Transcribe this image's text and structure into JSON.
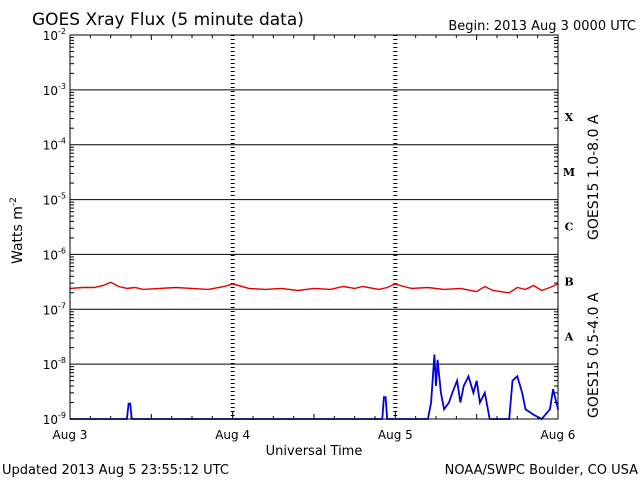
{
  "chart_data": {
    "type": "line",
    "title": "GOES Xray Flux (5 minute data)",
    "begin_label": "Begin:  2013 Aug 3 0000 UTC",
    "ylabel_base": "Watts m",
    "ylabel_exp": "-2",
    "xlabel": "Universal Time",
    "y_scale": "log",
    "ylim": [
      1e-09,
      0.01
    ],
    "xlim_days": [
      0,
      3
    ],
    "grid": "horizontal lines at each decade; dotted vertical lines at day boundaries",
    "x_ticks": [
      {
        "label": "Aug 3",
        "day": 0
      },
      {
        "label": "Aug 4",
        "day": 1
      },
      {
        "label": "Aug 5",
        "day": 2
      },
      {
        "label": "Aug 6",
        "day": 3
      }
    ],
    "y_ticks": [
      {
        "base": "10",
        "exp": "-2",
        "value": 0.01
      },
      {
        "base": "10",
        "exp": "-3",
        "value": 0.001
      },
      {
        "base": "10",
        "exp": "-4",
        "value": 0.0001
      },
      {
        "base": "10",
        "exp": "-5",
        "value": 1e-05
      },
      {
        "base": "10",
        "exp": "-6",
        "value": 1e-06
      },
      {
        "base": "10",
        "exp": "-7",
        "value": 1e-07
      },
      {
        "base": "10",
        "exp": "-8",
        "value": 1e-08
      },
      {
        "base": "10",
        "exp": "-9",
        "value": 1e-09
      }
    ],
    "flare_classes": [
      {
        "label": "X",
        "value": 0.00032
      },
      {
        "label": "M",
        "value": 3.2e-05
      },
      {
        "label": "C",
        "value": 3.2e-06
      },
      {
        "label": "B",
        "value": 3.2e-07
      },
      {
        "label": "A",
        "value": 3.2e-08
      }
    ],
    "series": [
      {
        "name": "GOES15 1.0-8.0 A",
        "color": "#e00000",
        "x_days": [
          0,
          0.08,
          0.15,
          0.2,
          0.25,
          0.3,
          0.35,
          0.4,
          0.45,
          0.55,
          0.65,
          0.75,
          0.85,
          0.95,
          1.0,
          1.1,
          1.2,
          1.3,
          1.4,
          1.5,
          1.6,
          1.68,
          1.75,
          1.8,
          1.9,
          1.95,
          2.0,
          2.05,
          2.1,
          2.2,
          2.3,
          2.4,
          2.5,
          2.55,
          2.6,
          2.7,
          2.75,
          2.8,
          2.85,
          2.9,
          2.95,
          3.0
        ],
        "values": [
          2.4e-07,
          2.5e-07,
          2.5e-07,
          2.7e-07,
          3.1e-07,
          2.6e-07,
          2.4e-07,
          2.5e-07,
          2.3e-07,
          2.4e-07,
          2.5e-07,
          2.4e-07,
          2.3e-07,
          2.6e-07,
          2.9e-07,
          2.4e-07,
          2.3e-07,
          2.4e-07,
          2.2e-07,
          2.4e-07,
          2.3e-07,
          2.6e-07,
          2.4e-07,
          2.6e-07,
          2.3e-07,
          2.5e-07,
          2.9e-07,
          2.6e-07,
          2.4e-07,
          2.5e-07,
          2.3e-07,
          2.4e-07,
          2.1e-07,
          2.6e-07,
          2.2e-07,
          2e-07,
          2.5e-07,
          2.3e-07,
          2.7e-07,
          2.2e-07,
          2.5e-07,
          2.9e-07
        ]
      },
      {
        "name": "GOES15 0.5-4.0 A",
        "color": "#0000e0",
        "x_days": [
          0,
          0.35,
          0.36,
          0.37,
          0.38,
          1.0,
          1.5,
          1.92,
          1.93,
          1.94,
          1.95,
          2.0,
          2.2,
          2.22,
          2.24,
          2.25,
          2.26,
          2.28,
          2.3,
          2.33,
          2.35,
          2.38,
          2.4,
          2.42,
          2.45,
          2.48,
          2.5,
          2.52,
          2.55,
          2.58,
          2.6,
          2.65,
          2.7,
          2.72,
          2.75,
          2.78,
          2.8,
          2.85,
          2.9,
          2.95,
          2.97,
          3.0
        ],
        "values": [
          1e-09,
          1e-09,
          1.9e-09,
          1.9e-09,
          1e-09,
          1e-09,
          1e-09,
          1e-09,
          2.5e-09,
          2.5e-09,
          1e-09,
          1e-09,
          1e-09,
          2e-09,
          1.5e-08,
          4e-09,
          1.2e-08,
          3e-09,
          1.5e-09,
          2e-09,
          3e-09,
          5e-09,
          2e-09,
          4e-09,
          6e-09,
          3e-09,
          5e-09,
          2e-09,
          3e-09,
          1e-09,
          1e-09,
          1e-09,
          1e-09,
          5e-09,
          6e-09,
          3e-09,
          1.5e-09,
          1.2e-09,
          1e-09,
          1.5e-09,
          3.5e-09,
          1.5e-09
        ]
      }
    ]
  },
  "footer": {
    "updated": "Updated 2013 Aug  5 23:55:12 UTC",
    "credit": "NOAA/SWPC Boulder, CO USA"
  }
}
